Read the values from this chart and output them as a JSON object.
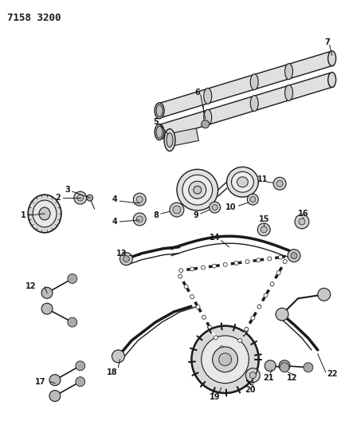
{
  "title_code": "7158 3200",
  "bg_color": "#ffffff",
  "line_color": "#1a1a1a",
  "label_color": "#1a1a1a",
  "fig_width": 4.28,
  "fig_height": 5.33,
  "dpi": 100,
  "title_fontsize": 9,
  "label_fontsize": 7.0
}
